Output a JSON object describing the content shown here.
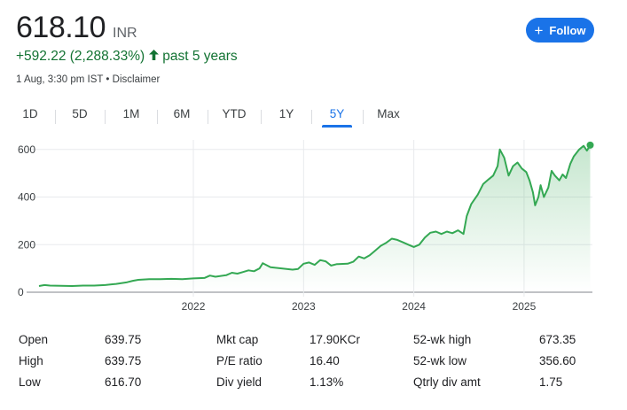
{
  "quote": {
    "price": "618.10",
    "currency": "INR",
    "change": "+592.22 (2,288.33%)",
    "change_period": "past 5 years",
    "meta": "1 Aug, 3:30 pm IST • Disclaimer",
    "follow_label": "Follow",
    "accent_color": "#1a73e8",
    "positive_color": "#137333",
    "arrow_icon": "arrow-up-icon"
  },
  "tabs": [
    {
      "label": "1D",
      "active": false
    },
    {
      "label": "5D",
      "active": false
    },
    {
      "label": "1M",
      "active": false
    },
    {
      "label": "6M",
      "active": false
    },
    {
      "label": "YTD",
      "active": false
    },
    {
      "label": "1Y",
      "active": false
    },
    {
      "label": "5Y",
      "active": true
    },
    {
      "label": "Max",
      "active": false
    }
  ],
  "chart_data": {
    "type": "area",
    "series_color": "#34a853",
    "ylim": [
      0,
      640
    ],
    "y_ticks": [
      "0",
      "200",
      "400",
      "600"
    ],
    "x_ticks": [
      {
        "label": "2022",
        "t": 2022.0
      },
      {
        "label": "2023",
        "t": 2023.0
      },
      {
        "label": "2024",
        "t": 2024.0
      },
      {
        "label": "2025",
        "t": 2025.0
      }
    ],
    "xlim": [
      2020.6,
      2025.62
    ],
    "grid": true,
    "points": [
      [
        2020.6,
        26
      ],
      [
        2020.65,
        30
      ],
      [
        2020.7,
        28
      ],
      [
        2020.8,
        27
      ],
      [
        2020.9,
        26
      ],
      [
        2021.0,
        28
      ],
      [
        2021.1,
        28
      ],
      [
        2021.2,
        30
      ],
      [
        2021.3,
        35
      ],
      [
        2021.4,
        42
      ],
      [
        2021.45,
        48
      ],
      [
        2021.5,
        52
      ],
      [
        2021.6,
        55
      ],
      [
        2021.7,
        55
      ],
      [
        2021.8,
        56
      ],
      [
        2021.9,
        55
      ],
      [
        2022.0,
        58
      ],
      [
        2022.1,
        60
      ],
      [
        2022.15,
        70
      ],
      [
        2022.2,
        65
      ],
      [
        2022.3,
        72
      ],
      [
        2022.35,
        82
      ],
      [
        2022.4,
        78
      ],
      [
        2022.45,
        85
      ],
      [
        2022.5,
        92
      ],
      [
        2022.55,
        88
      ],
      [
        2022.6,
        100
      ],
      [
        2022.63,
        122
      ],
      [
        2022.7,
        105
      ],
      [
        2022.8,
        100
      ],
      [
        2022.9,
        95
      ],
      [
        2022.95,
        98
      ],
      [
        2023.0,
        120
      ],
      [
        2023.05,
        125
      ],
      [
        2023.1,
        115
      ],
      [
        2023.15,
        135
      ],
      [
        2023.2,
        130
      ],
      [
        2023.25,
        112
      ],
      [
        2023.3,
        118
      ],
      [
        2023.4,
        120
      ],
      [
        2023.45,
        128
      ],
      [
        2023.5,
        150
      ],
      [
        2023.55,
        142
      ],
      [
        2023.6,
        155
      ],
      [
        2023.65,
        175
      ],
      [
        2023.7,
        195
      ],
      [
        2023.75,
        208
      ],
      [
        2023.8,
        225
      ],
      [
        2023.85,
        220
      ],
      [
        2023.9,
        210
      ],
      [
        2023.95,
        200
      ],
      [
        2024.0,
        190
      ],
      [
        2024.05,
        200
      ],
      [
        2024.1,
        230
      ],
      [
        2024.15,
        250
      ],
      [
        2024.2,
        255
      ],
      [
        2024.25,
        245
      ],
      [
        2024.3,
        255
      ],
      [
        2024.35,
        248
      ],
      [
        2024.4,
        260
      ],
      [
        2024.45,
        245
      ],
      [
        2024.48,
        320
      ],
      [
        2024.52,
        370
      ],
      [
        2024.58,
        410
      ],
      [
        2024.63,
        455
      ],
      [
        2024.68,
        475
      ],
      [
        2024.72,
        490
      ],
      [
        2024.76,
        530
      ],
      [
        2024.78,
        600
      ],
      [
        2024.82,
        565
      ],
      [
        2024.86,
        490
      ],
      [
        2024.9,
        530
      ],
      [
        2024.94,
        545
      ],
      [
        2024.98,
        520
      ],
      [
        2025.02,
        505
      ],
      [
        2025.05,
        470
      ],
      [
        2025.08,
        420
      ],
      [
        2025.1,
        365
      ],
      [
        2025.13,
        400
      ],
      [
        2025.15,
        450
      ],
      [
        2025.18,
        400
      ],
      [
        2025.22,
        440
      ],
      [
        2025.25,
        510
      ],
      [
        2025.28,
        490
      ],
      [
        2025.32,
        470
      ],
      [
        2025.35,
        495
      ],
      [
        2025.38,
        480
      ],
      [
        2025.42,
        540
      ],
      [
        2025.45,
        570
      ],
      [
        2025.5,
        600
      ],
      [
        2025.54,
        615
      ],
      [
        2025.57,
        595
      ],
      [
        2025.6,
        618.1
      ]
    ]
  },
  "stats": [
    [
      {
        "label": "Open",
        "value": "639.75"
      },
      {
        "label": "High",
        "value": "639.75"
      },
      {
        "label": "Low",
        "value": "616.70"
      }
    ],
    [
      {
        "label": "Mkt cap",
        "value": "17.90KCr"
      },
      {
        "label": "P/E ratio",
        "value": "16.40"
      },
      {
        "label": "Div yield",
        "value": "1.13%"
      }
    ],
    [
      {
        "label": "52-wk high",
        "value": "673.35"
      },
      {
        "label": "52-wk low",
        "value": "356.60"
      },
      {
        "label": "Qtrly div amt",
        "value": "1.75"
      }
    ]
  ]
}
